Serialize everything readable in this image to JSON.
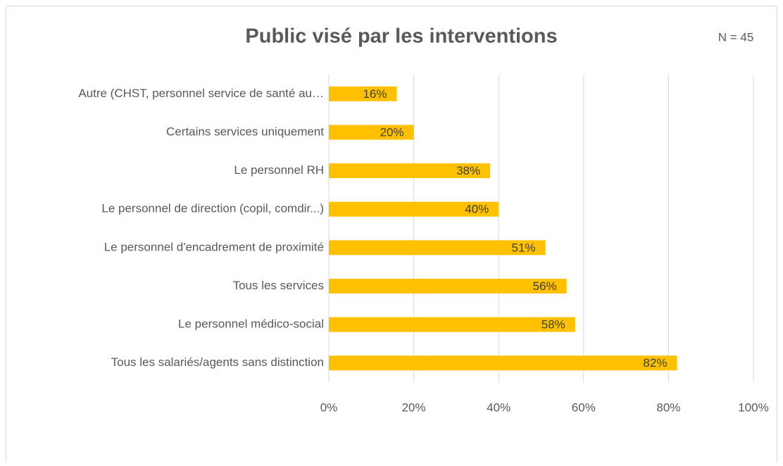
{
  "chart_data": {
    "type": "bar",
    "orientation": "horizontal",
    "title": "Public visé par les interventions",
    "annotation": "N = 45",
    "categories": [
      "Autre (CHST, personnel service de santé au…",
      "Certains services uniquement",
      "Le personnel RH",
      "Le personnel de direction (copil, comdir...)",
      "Le personnel d'encadrement de proximité",
      "Tous les services",
      "Le personnel médico-social",
      "Tous les salariés/agents sans distinction"
    ],
    "values": [
      16,
      20,
      38,
      40,
      51,
      56,
      58,
      82
    ],
    "value_labels": [
      "16%",
      "20%",
      "38%",
      "40%",
      "51%",
      "56%",
      "58%",
      "82%"
    ],
    "color": "#ffc000",
    "xlim": [
      0,
      100
    ],
    "xticks": [
      {
        "value": 0,
        "label": "0%"
      },
      {
        "value": 20,
        "label": "20%"
      },
      {
        "value": 40,
        "label": "40%"
      },
      {
        "value": 60,
        "label": "60%"
      },
      {
        "value": 80,
        "label": "80%"
      },
      {
        "value": 100,
        "label": "100%"
      }
    ],
    "grid": true
  }
}
